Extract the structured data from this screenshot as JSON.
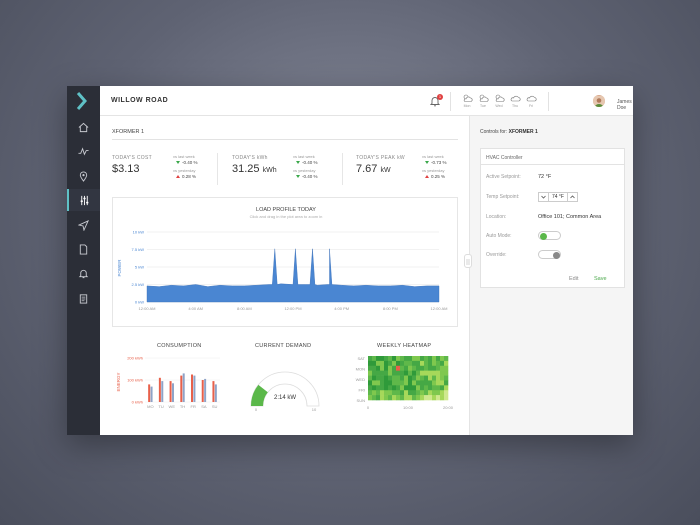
{
  "header": {
    "title": "WILLOW ROAD",
    "notification_count": "1",
    "weather": [
      {
        "day": "Mon",
        "icon": "sun-cloud-icon"
      },
      {
        "day": "Tue",
        "icon": "sun-cloud-icon"
      },
      {
        "day": "Wed",
        "icon": "sun-cloud-icon"
      },
      {
        "day": "Thu",
        "icon": "cloud-icon"
      },
      {
        "day": "Fri",
        "icon": "cloud-icon"
      }
    ],
    "user_name": "James Doe"
  },
  "sidebar": {
    "items": [
      {
        "icon": "home-icon"
      },
      {
        "icon": "activity-icon"
      },
      {
        "icon": "location-pin-icon"
      },
      {
        "icon": "sliders-icon",
        "active": true
      },
      {
        "icon": "send-icon"
      },
      {
        "icon": "document-icon"
      },
      {
        "icon": "bell-icon"
      },
      {
        "icon": "clipboard-icon"
      }
    ],
    "accent": "#5fc1c6"
  },
  "main": {
    "section": "XFORMER 1",
    "stats": [
      {
        "title": "TODAY'S COST",
        "value": "$3.13",
        "unit": "",
        "cmp": [
          {
            "label": "vs last week",
            "dir": "down",
            "val": "-0.40 %"
          },
          {
            "label": "vs yesterday",
            "dir": "up",
            "val": "0.28 %"
          }
        ]
      },
      {
        "title": "TODAY'S kWh",
        "value": "31.25",
        "unit": "kWh",
        "cmp": [
          {
            "label": "vs last week",
            "dir": "down",
            "val": "-0.40 %"
          },
          {
            "label": "vs yesterday",
            "dir": "down",
            "val": "-0.40 %"
          }
        ]
      },
      {
        "title": "TODAY'S PEAK kW",
        "value": "7.67",
        "unit": "kW",
        "cmp": [
          {
            "label": "vs last week",
            "dir": "down",
            "val": "-0.73 %"
          },
          {
            "label": "vs yesterday",
            "dir": "up",
            "val": "0.25 %"
          }
        ]
      }
    ]
  },
  "chart_data": [
    {
      "type": "area",
      "title": "LOAD PROFILE TODAY",
      "subtitle": "Click and drag in the plot area to zoom in",
      "ylabel": "POWER",
      "yticks": [
        "0 kW",
        "2.5 kW",
        "5 kW",
        "7.5 kW",
        "10 kW"
      ],
      "xticks": [
        "12:00 AM",
        "4:00 AM",
        "8:00 AM",
        "12:00 PM",
        "4:00 PM",
        "8:00 PM",
        "12:00 AM"
      ],
      "ylim": [
        0,
        10
      ],
      "x": [
        0,
        1,
        2,
        3,
        4,
        5,
        6,
        7,
        8,
        9,
        10,
        11,
        12,
        13,
        14,
        15,
        16,
        17,
        18,
        19,
        20,
        21,
        22,
        23,
        24
      ],
      "values": [
        2.3,
        2.2,
        2.4,
        2.3,
        2.5,
        2.2,
        2.4,
        2.3,
        2.3,
        2.4,
        2.5,
        2.6,
        2.5,
        2.5,
        2.4,
        2.5,
        2.4,
        2.3,
        2.4,
        2.3,
        2.3,
        2.4,
        2.2,
        2.3,
        2.3
      ],
      "spikes": [
        {
          "x": 10.5,
          "y": 7.6
        },
        {
          "x": 12.2,
          "y": 7.6
        },
        {
          "x": 13.6,
          "y": 7.6
        },
        {
          "x": 15.0,
          "y": 7.6
        }
      ],
      "color": "#4a86d2"
    },
    {
      "type": "bar",
      "title": "CONSUMPTION",
      "ylabel": "ENERGY",
      "yticks": [
        "0 kWh",
        "100 kWh",
        "200 kWh"
      ],
      "categories": [
        "MO",
        "TU",
        "WE",
        "TH",
        "FR",
        "SA",
        "SU"
      ],
      "ylim": [
        0,
        200
      ],
      "series": [
        {
          "name": "",
          "values": [
            80,
            110,
            95,
            120,
            125,
            100,
            95
          ],
          "color": "#e8604a"
        },
        {
          "name": "",
          "values": [
            70,
            95,
            85,
            130,
            120,
            105,
            80
          ],
          "color": "#8ea3c8"
        }
      ]
    },
    {
      "type": "gauge",
      "title": "CURRENT DEMAND",
      "value": 2.14,
      "label": "2:14 kW",
      "min_label": "0",
      "max_label": "10",
      "range": [
        0,
        10
      ],
      "color": "#5bb84a"
    },
    {
      "type": "heatmap",
      "title": "WEEKLY HEATMAP",
      "rows": [
        "SAT",
        "MON",
        "WED",
        "FRI",
        "SUN"
      ],
      "xticks": [
        "0",
        "10:00",
        "20:00"
      ]
    }
  ],
  "right_panel": {
    "controls_label_prefix": "Controls for:",
    "controls_target": "XFORMER 1",
    "card_title": "HVAC Controller",
    "active_setpoint_label": "Active Setpoint:",
    "active_setpoint_value": "72 °F",
    "temp_setpoint_label": "Temp Setpoint:",
    "temp_setpoint_value": "74 °F",
    "location_label": "Location:",
    "location_value": "Office 101; Common Area",
    "auto_mode_label": "Auto Mode:",
    "override_label": "Override:",
    "edit_label": "Edit",
    "save_label": "Save",
    "auto_mode_on": true,
    "override_on": false
  }
}
